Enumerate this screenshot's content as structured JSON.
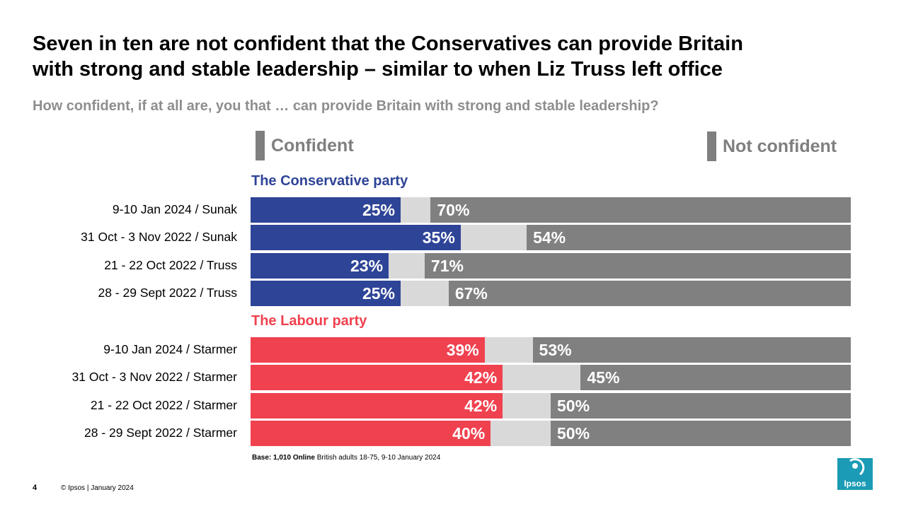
{
  "title": {
    "line1": "Seven in ten are not confident that the Conservatives can provide Britain",
    "line2": "with strong and stable leadership – similar to when Liz Truss left office"
  },
  "subtitle": "How confident, if at all are, you that … can provide Britain with strong and stable leadership?",
  "legend": {
    "confident_label": "Confident",
    "not_confident_label": "Not confident",
    "color": "#7f7f7f"
  },
  "chart_data": {
    "type": "bar",
    "orientation": "horizontal",
    "stacked": true,
    "xlim": [
      0,
      100
    ],
    "series_names": [
      "Confident",
      "Not confident"
    ],
    "groups": [
      {
        "name": "The Conservative party",
        "color": "#2e4497",
        "rows": [
          {
            "label": "9-10 Jan 2024 / Sunak",
            "confident": 25,
            "not_confident": 70
          },
          {
            "label": "31 Oct - 3 Nov 2022 / Sunak",
            "confident": 35,
            "not_confident": 54
          },
          {
            "label": "21 - 22 Oct 2022 / Truss",
            "confident": 23,
            "not_confident": 71
          },
          {
            "label": "28 - 29 Sept 2022 / Truss",
            "confident": 25,
            "not_confident": 67
          }
        ]
      },
      {
        "name": "The Labour party",
        "color": "#f0414f",
        "rows": [
          {
            "label": "9-10 Jan 2024 / Starmer",
            "confident": 39,
            "not_confident": 53
          },
          {
            "label": "31 Oct - 3 Nov 2022 / Starmer",
            "confident": 42,
            "not_confident": 45
          },
          {
            "label": "21 - 22 Oct 2022 / Starmer",
            "confident": 42,
            "not_confident": 50
          },
          {
            "label": "28 - 29 Sept 2022 / Starmer",
            "confident": 40,
            "not_confident": 50
          }
        ]
      }
    ],
    "colors": {
      "neutral": "#d9d9d9",
      "not_confident": "#808080"
    }
  },
  "base_note": {
    "bold": "Base: 1,010 Online",
    "rest": " British adults 18-75, 9-10 January 2024"
  },
  "footer": {
    "page_number": "4",
    "copyright": "© Ipsos | January 2024"
  },
  "logo": {
    "text": "Ipsos",
    "color": "#1b9bb5"
  }
}
